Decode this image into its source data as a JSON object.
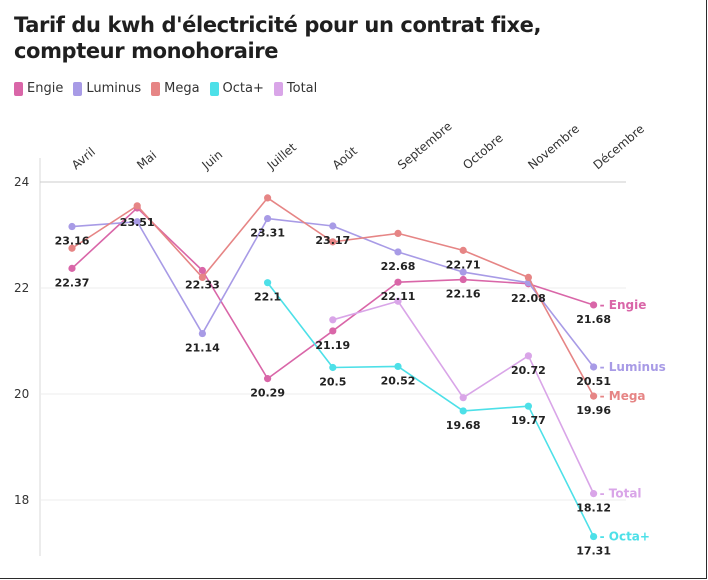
{
  "chart_data": {
    "type": "line",
    "title": "Tarif du kwh d'électricité pour un contrat fixe, compteur monohoraire",
    "categories": [
      "Avril",
      "Mai",
      "Juin",
      "Juillet",
      "Août",
      "Septembre",
      "Octobre",
      "Novembre",
      "Décembre"
    ],
    "ylim": [
      17,
      24.5
    ],
    "yticks": [
      18,
      20,
      22,
      24
    ],
    "series": [
      {
        "name": "Engie",
        "color": "#d966a8",
        "values": [
          22.37,
          23.51,
          22.33,
          20.29,
          21.19,
          22.11,
          22.16,
          22.08,
          21.68
        ]
      },
      {
        "name": "Luminus",
        "color": "#a89be6",
        "values": [
          23.16,
          23.25,
          21.14,
          23.31,
          23.17,
          22.68,
          22.3,
          22.1,
          20.51
        ]
      },
      {
        "name": "Mega",
        "color": "#e68585",
        "values": [
          22.75,
          23.55,
          22.2,
          23.7,
          22.87,
          23.03,
          22.71,
          22.2,
          19.96
        ]
      },
      {
        "name": "Octa+",
        "color": "#4de0e8",
        "values": [
          null,
          null,
          null,
          22.1,
          20.5,
          20.52,
          19.68,
          19.77,
          17.31
        ]
      },
      {
        "name": "Total",
        "color": "#d9a5e8",
        "values": [
          null,
          null,
          null,
          null,
          21.4,
          21.75,
          19.93,
          20.72,
          18.12
        ]
      }
    ],
    "data_labels": [
      {
        "text": "23.16",
        "cat": 0,
        "value": 23.16
      },
      {
        "text": "22.37",
        "cat": 0,
        "value": 22.37
      },
      {
        "text": "23.51",
        "cat": 1,
        "value": 23.51
      },
      {
        "text": "22.33",
        "cat": 2,
        "value": 22.33
      },
      {
        "text": "21.14",
        "cat": 2,
        "value": 21.14
      },
      {
        "text": "23.31",
        "cat": 3,
        "value": 23.31
      },
      {
        "text": "22.1",
        "cat": 3,
        "value": 22.1
      },
      {
        "text": "20.29",
        "cat": 3,
        "value": 20.29
      },
      {
        "text": "23.17",
        "cat": 4,
        "value": 23.17
      },
      {
        "text": "21.19",
        "cat": 4,
        "value": 21.19
      },
      {
        "text": "20.5",
        "cat": 4,
        "value": 20.5
      },
      {
        "text": "22.68",
        "cat": 5,
        "value": 22.68
      },
      {
        "text": "22.11",
        "cat": 5,
        "value": 22.11
      },
      {
        "text": "20.52",
        "cat": 5,
        "value": 20.52
      },
      {
        "text": "22.71",
        "cat": 6,
        "value": 22.71
      },
      {
        "text": "22.16",
        "cat": 6,
        "value": 22.16
      },
      {
        "text": "19.68",
        "cat": 6,
        "value": 19.68
      },
      {
        "text": "22.08",
        "cat": 7,
        "value": 22.08
      },
      {
        "text": "20.72",
        "cat": 7,
        "value": 20.72
      },
      {
        "text": "19.77",
        "cat": 7,
        "value": 19.77
      },
      {
        "text": "21.68",
        "cat": 8,
        "value": 21.68
      },
      {
        "text": "20.51",
        "cat": 8,
        "value": 20.51
      },
      {
        "text": "19.96",
        "cat": 8,
        "value": 19.96
      },
      {
        "text": "18.12",
        "cat": 8,
        "value": 18.12
      },
      {
        "text": "17.31",
        "cat": 8,
        "value": 17.31
      }
    ],
    "end_labels": [
      {
        "text": "- Engie",
        "series": "Engie"
      },
      {
        "text": "- Luminus",
        "series": "Luminus"
      },
      {
        "text": "- Mega",
        "series": "Mega"
      },
      {
        "text": "- Total",
        "series": "Total"
      },
      {
        "text": "- Octa+",
        "series": "Octa+"
      }
    ]
  }
}
